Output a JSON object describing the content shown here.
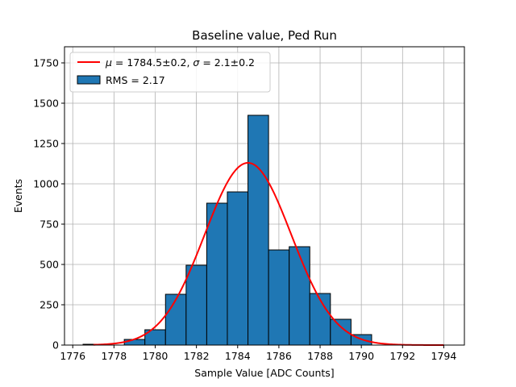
{
  "chart_data": {
    "type": "bar",
    "title": "Baseline value, Ped Run",
    "xlabel": "Sample Value [ADC Counts]",
    "ylabel": "Events",
    "xlim": [
      1775.6,
      1795
    ],
    "ylim": [
      0,
      1850
    ],
    "x_ticks": [
      1776,
      1778,
      1780,
      1782,
      1784,
      1786,
      1788,
      1790,
      1792,
      1794
    ],
    "y_ticks": [
      0,
      250,
      500,
      750,
      1000,
      1250,
      1500,
      1750
    ],
    "grid": true,
    "legend_position": "top-left",
    "histogram": {
      "name": "RMS = 2.17",
      "color": "#1f77b4",
      "edge_color": "#000000",
      "bin_edges": [
        1776.5,
        1777.5,
        1778.5,
        1779.5,
        1780.5,
        1781.5,
        1782.5,
        1783.5,
        1784.5,
        1785.5,
        1786.5,
        1787.5,
        1788.5,
        1789.5,
        1790.5
      ],
      "counts": [
        5,
        0,
        35,
        95,
        315,
        495,
        880,
        950,
        1425,
        590,
        610,
        320,
        160,
        65
      ]
    },
    "fit": {
      "name": "$\\mu = 1784.5 \\pm 0.2$, $\\sigma = 2.1 \\pm 0.2$",
      "color": "#ff0000",
      "type": "gaussian",
      "amplitude": 1130,
      "mu": 1784.5,
      "sigma": 2.1,
      "x_range": [
        1777,
        1794
      ]
    }
  }
}
